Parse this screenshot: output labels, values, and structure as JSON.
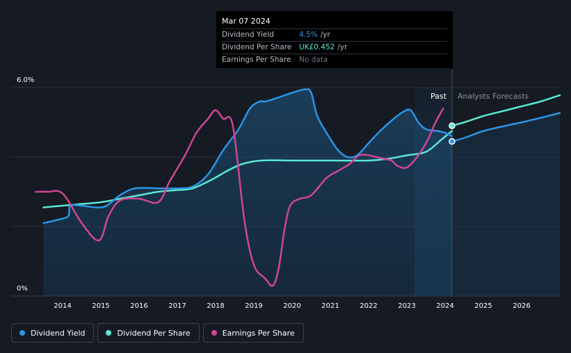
{
  "chart_data": {
    "type": "line",
    "ylim": [
      0,
      6.0
    ],
    "y_tick_labels": [
      "6.0%",
      "0%"
    ],
    "x_ticks": [
      2014,
      2015,
      2016,
      2017,
      2018,
      2019,
      2020,
      2021,
      2022,
      2023,
      2024,
      2025,
      2026
    ],
    "regions": {
      "past": "Past",
      "forecast": "Analysts Forecasts"
    },
    "series": [
      {
        "name": "Dividend Yield",
        "color": "#2b95e6",
        "x": [
          2013.5,
          2013.9,
          2014.15,
          2014.2,
          2014.5,
          2014.9,
          2015.15,
          2015.5,
          2015.9,
          2016.5,
          2017.0,
          2017.4,
          2017.8,
          2018.2,
          2018.6,
          2018.9,
          2019.15,
          2019.3,
          2019.6,
          2020.0,
          2020.35,
          2020.5,
          2020.65,
          2020.9,
          2021.2,
          2021.45,
          2021.7,
          2022.0,
          2022.3,
          2022.6,
          2022.9,
          2023.1,
          2023.3,
          2023.5,
          2023.8,
          2024.0,
          2024.18
        ],
        "values": [
          2.1,
          2.2,
          2.3,
          2.6,
          2.6,
          2.55,
          2.6,
          2.9,
          3.1,
          3.1,
          3.1,
          3.15,
          3.5,
          4.2,
          4.8,
          5.4,
          5.6,
          5.6,
          5.7,
          5.85,
          5.95,
          5.85,
          5.2,
          4.7,
          4.2,
          4.0,
          4.05,
          4.4,
          4.75,
          5.05,
          5.3,
          5.35,
          5.0,
          4.8,
          4.75,
          4.7,
          4.6
        ]
      },
      {
        "name": "Dividend Per Share",
        "color": "#5ae8d3",
        "x": [
          2013.5,
          2014.0,
          2014.5,
          2015.0,
          2015.5,
          2016.0,
          2016.5,
          2017.0,
          2017.4,
          2017.9,
          2018.3,
          2018.7,
          2019.2,
          2020.0,
          2021.0,
          2022.0,
          2022.5,
          2023.0,
          2023.5,
          2023.9,
          2024.18
        ],
        "values": [
          2.55,
          2.6,
          2.65,
          2.7,
          2.8,
          2.9,
          3.0,
          3.05,
          3.1,
          3.35,
          3.6,
          3.8,
          3.9,
          3.9,
          3.9,
          3.9,
          3.95,
          4.05,
          4.15,
          4.5,
          4.75
        ]
      },
      {
        "name": "Earnings Per Share",
        "color": "#d04694",
        "x": [
          2013.3,
          2013.6,
          2014.0,
          2014.5,
          2014.95,
          2015.2,
          2015.5,
          2016.0,
          2016.5,
          2016.8,
          2017.2,
          2017.5,
          2017.8,
          2018.0,
          2018.2,
          2018.45,
          2018.75,
          2019.0,
          2019.3,
          2019.5,
          2019.65,
          2019.8,
          2019.95,
          2020.2,
          2020.5,
          2020.9,
          2021.2,
          2021.5,
          2021.75,
          2022.0,
          2022.2,
          2022.4,
          2022.6,
          2022.75,
          2023.0,
          2023.3,
          2023.55,
          2023.75,
          2023.95
        ],
        "values": [
          3.0,
          3.0,
          2.95,
          2.1,
          1.6,
          2.3,
          2.75,
          2.8,
          2.7,
          3.3,
          4.05,
          4.7,
          5.1,
          5.35,
          5.1,
          4.9,
          2.2,
          0.9,
          0.5,
          0.3,
          0.8,
          1.9,
          2.6,
          2.8,
          2.9,
          3.4,
          3.6,
          3.8,
          4.05,
          4.05,
          4.0,
          3.95,
          3.9,
          3.75,
          3.7,
          4.05,
          4.5,
          5.0,
          5.4
        ]
      }
    ],
    "forecasts": [
      {
        "name": "Dividend Yield forecast",
        "color": "#2b95e6",
        "x": [
          2024.18,
          2024.5,
          2025.0,
          2025.5,
          2026.0,
          2026.5,
          2027.0
        ],
        "values": [
          4.45,
          4.55,
          4.75,
          4.88,
          5.0,
          5.13,
          5.27
        ]
      },
      {
        "name": "Dividend Per Share forecast",
        "color": "#5ae8d3",
        "x": [
          2024.18,
          2024.5,
          2025.0,
          2025.5,
          2026.0,
          2026.5,
          2027.0
        ],
        "values": [
          4.9,
          5.0,
          5.18,
          5.32,
          5.46,
          5.6,
          5.78
        ]
      }
    ],
    "marker_x": 2024.18
  },
  "tooltip": {
    "date": "Mar 07 2024",
    "rows": [
      {
        "label": "Dividend Yield",
        "value": "4.5%",
        "unit": "/yr",
        "color": "#2b95e6"
      },
      {
        "label": "Dividend Per Share",
        "value": "UK£0.452",
        "unit": "/yr",
        "color": "#5ae8d3"
      },
      {
        "label": "Earnings Per Share",
        "value": "No data",
        "unit": "",
        "color": "#6c7380"
      }
    ]
  },
  "legend": [
    {
      "label": "Dividend Yield",
      "color": "#2b95e6"
    },
    {
      "label": "Dividend Per Share",
      "color": "#5ae8d3"
    },
    {
      "label": "Earnings Per Share",
      "color": "#d04694"
    }
  ]
}
